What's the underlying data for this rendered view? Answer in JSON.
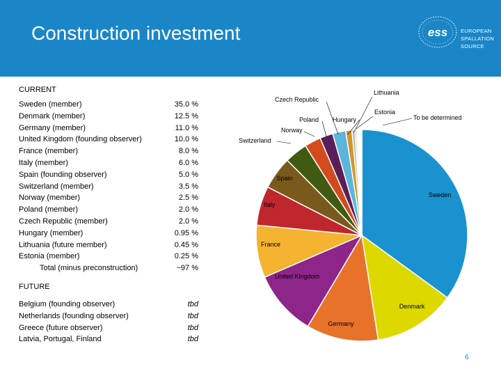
{
  "header": {
    "title": "Construction investment",
    "logo_mark": "ess",
    "logo_lines": [
      "EUROPEAN",
      "SPALLATION",
      "SOURCE"
    ]
  },
  "current": {
    "label": "CURRENT",
    "rows": [
      {
        "name": "Sweden",
        "qualifier": "(member)",
        "value": "35.0 %"
      },
      {
        "name": "Denmark",
        "qualifier": "(member)",
        "value": "12.5 %"
      },
      {
        "name": "Germany",
        "qualifier": "(member)",
        "value": "11.0 %"
      },
      {
        "name": "United Kingdom",
        "qualifier": "(founding observer)",
        "value": "10.0 %"
      },
      {
        "name": "France",
        "qualifier": "(member)",
        "value": "8.0 %"
      },
      {
        "name": "Italy",
        "qualifier": "(member)",
        "value": "6.0 %"
      },
      {
        "name": "Spain",
        "qualifier": "(founding observer)",
        "value": "5.0 %"
      },
      {
        "name": "Switzerland",
        "qualifier": "(member)",
        "value": "3.5 %"
      },
      {
        "name": "Norway",
        "qualifier": "(member)",
        "value": "2.5 %"
      },
      {
        "name": "Poland",
        "qualifier": "(member)",
        "value": "2.0 %"
      },
      {
        "name": "Czech Republic",
        "qualifier": "(member)",
        "value": "2.0 %"
      },
      {
        "name": "Hungary",
        "qualifier": "(member)",
        "value": "0.95 %"
      },
      {
        "name": "Lithuania",
        "qualifier": "(future member)",
        "value": "0.45 %"
      },
      {
        "name": "Estonia",
        "qualifier": "(member)",
        "value": "0.25 %"
      }
    ],
    "total": {
      "name": "Total (minus preconstruction)",
      "value": "~97 %"
    }
  },
  "future": {
    "label": "FUTURE",
    "rows": [
      {
        "name": "Belgium",
        "qualifier": "(founding observer)",
        "value": "tbd"
      },
      {
        "name": "Netherlands",
        "qualifier": "(founding observer)",
        "value": "tbd"
      },
      {
        "name": "Greece",
        "qualifier": "(future observer)",
        "value": "tbd"
      },
      {
        "name": "Latvia, Portugal, Finland",
        "qualifier": "",
        "value": "tbd"
      }
    ]
  },
  "chart_data": {
    "type": "pie",
    "slices": [
      {
        "label": "Sweden",
        "value": 35.0,
        "color": "#1a92d0"
      },
      {
        "label": "Denmark",
        "value": 12.5,
        "color": "#dcd800"
      },
      {
        "label": "Germany",
        "value": 11.0,
        "color": "#e8722a"
      },
      {
        "label": "United Kingdom",
        "value": 10.0,
        "color": "#8e2588"
      },
      {
        "label": "France",
        "value": 8.0,
        "color": "#f4b330"
      },
      {
        "label": "Italy",
        "value": 6.0,
        "color": "#c0272d"
      },
      {
        "label": "Spain",
        "value": 5.0,
        "color": "#7a5a1c"
      },
      {
        "label": "Switzerland",
        "value": 3.5,
        "color": "#415a12"
      },
      {
        "label": "Norway",
        "value": 2.5,
        "color": "#d24b1e"
      },
      {
        "label": "Poland",
        "value": 2.0,
        "color": "#5a1f58"
      },
      {
        "label": "Czech Republic",
        "value": 2.0,
        "color": "#5cb6da"
      },
      {
        "label": "Hungary",
        "value": 0.95,
        "color": "#d3952d"
      },
      {
        "label": "Lithuania",
        "value": 0.45,
        "color": "#b9b9b9"
      },
      {
        "label": "Estonia",
        "value": 0.25,
        "color": "#b3c860"
      },
      {
        "label": "To be determined",
        "value": 0.8,
        "color": "#ffffff"
      }
    ]
  },
  "page_number": "6"
}
